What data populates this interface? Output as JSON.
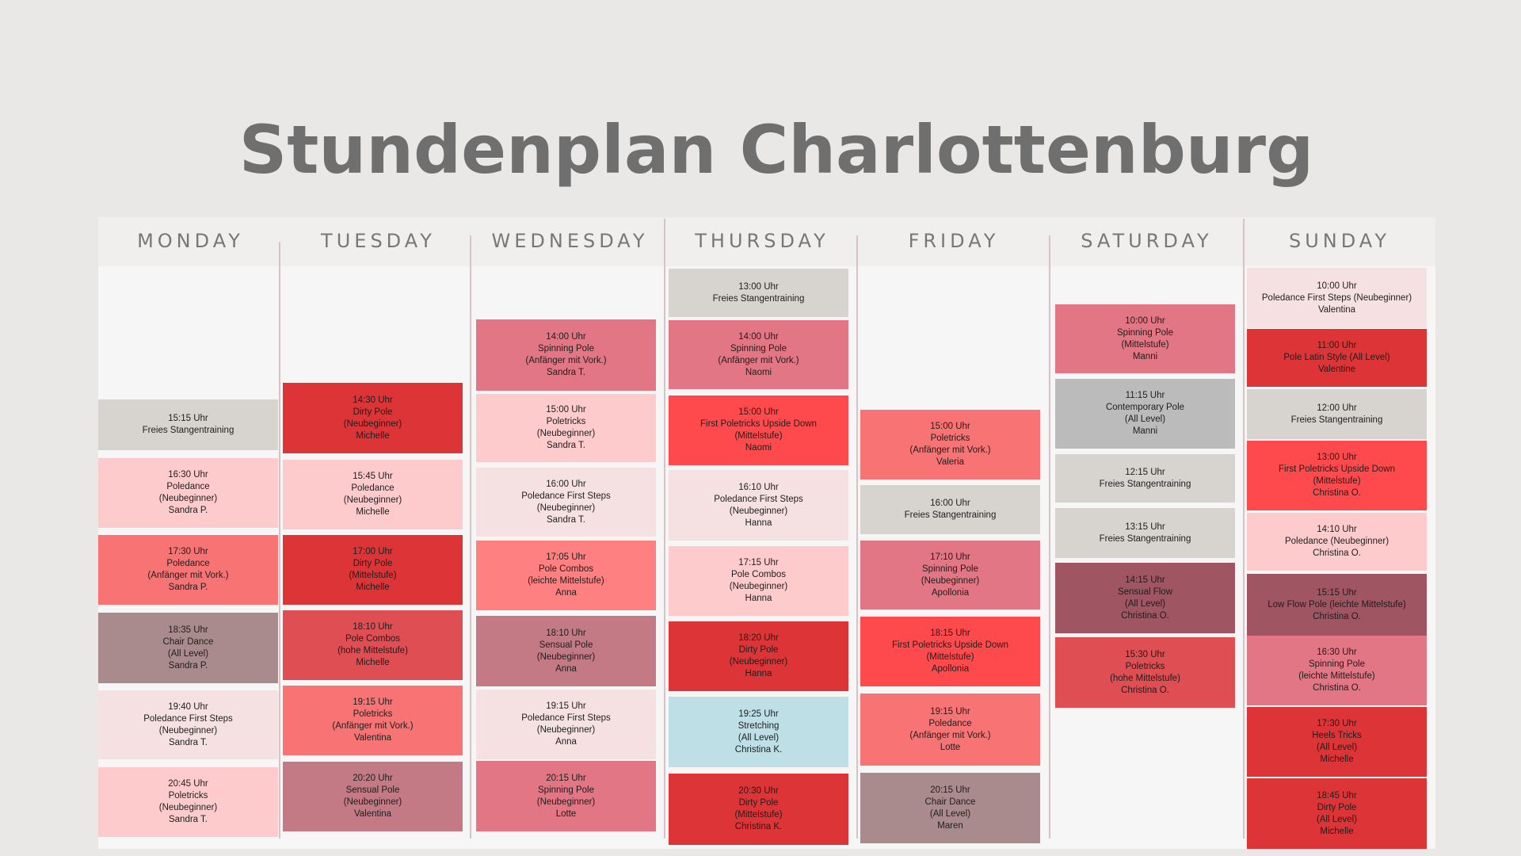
{
  "title": "Stundenplan Charlottenburg",
  "colors": {
    "grey": "#d7d3cf",
    "silver": "#bbbbbb",
    "light_pink": "#fecbcc",
    "pale_pink": "#f6e1e2",
    "salmon": "#f87374",
    "red": "#dd3537",
    "bright_red": "#fe4a4c",
    "rose": "#e27684",
    "dusty_rose": "#c37a85",
    "mauve": "#a98b8e",
    "wine": "#a05563",
    "brick": "#de4e53",
    "coral": "#ff8081",
    "light_blue": "#bedfe5"
  },
  "days": [
    {
      "name": "MONDAY",
      "classes": [
        {
          "time": "15:15 Uhr",
          "lines": [
            "Freies Stangentraining"
          ],
          "color": "grey"
        },
        {
          "time": "16:30 Uhr",
          "lines": [
            "Poledance",
            "(Neubeginner)",
            "Sandra P."
          ],
          "color": "light_pink"
        },
        {
          "time": "17:30 Uhr",
          "lines": [
            "Poledance",
            "(Anfänger mit Vork.)",
            "Sandra P."
          ],
          "color": "salmon"
        },
        {
          "time": "18:35 Uhr",
          "lines": [
            "Chair Dance",
            "(All Level)",
            "Sandra P."
          ],
          "color": "mauve"
        },
        {
          "time": "19:40 Uhr",
          "lines": [
            "Poledance First Steps",
            "(Neubeginner)",
            "Sandra T."
          ],
          "color": "pale_pink"
        },
        {
          "time": "20:45 Uhr",
          "lines": [
            "Poletricks",
            "(Neubeginner)",
            "Sandra T."
          ],
          "color": "light_pink"
        }
      ]
    },
    {
      "name": "TUESDAY",
      "classes": [
        {
          "time": "14:30 Uhr",
          "lines": [
            "Dirty Pole",
            "(Neubeginner)",
            "Michelle"
          ],
          "color": "red"
        },
        {
          "time": "15:45 Uhr",
          "lines": [
            "Poledance",
            "(Neubeginner)",
            "Michelle"
          ],
          "color": "light_pink"
        },
        {
          "time": "17:00 Uhr",
          "lines": [
            "Dirty Pole",
            "(Mittelstufe)",
            "Michelle"
          ],
          "color": "red"
        },
        {
          "time": "18:10 Uhr",
          "lines": [
            "Pole Combos",
            "(hohe Mittelstufe)",
            "Michelle"
          ],
          "color": "brick"
        },
        {
          "time": "19:15 Uhr",
          "lines": [
            "Poletricks",
            "(Anfänger mit Vork.)",
            "Valentina"
          ],
          "color": "salmon"
        },
        {
          "time": "20:20 Uhr",
          "lines": [
            "Sensual Pole",
            "(Neubeginner)",
            "Valentina"
          ],
          "color": "dusty_rose"
        }
      ]
    },
    {
      "name": "WEDNESDAY",
      "classes": [
        {
          "time": "14:00 Uhr",
          "lines": [
            "Spinning Pole",
            "(Anfänger mit Vork.)",
            "Sandra T."
          ],
          "color": "rose"
        },
        {
          "time": "15:00 Uhr",
          "lines": [
            "Poletricks",
            "(Neubeginner)",
            "Sandra T."
          ],
          "color": "light_pink"
        },
        {
          "time": "16:00 Uhr",
          "lines": [
            "Poledance First Steps",
            "(Neubeginner)",
            "Sandra T."
          ],
          "color": "pale_pink"
        },
        {
          "time": "17:05 Uhr",
          "lines": [
            "Pole Combos",
            "(leichte Mittelstufe)",
            "Anna"
          ],
          "color": "coral"
        },
        {
          "time": "18:10 Uhr",
          "lines": [
            "Sensual Pole",
            "(Neubeginner)",
            "Anna"
          ],
          "color": "dusty_rose"
        },
        {
          "time": "19:15 Uhr",
          "lines": [
            "Poledance First Steps",
            "(Neubeginner)",
            "Anna"
          ],
          "color": "pale_pink"
        },
        {
          "time": "20:15 Uhr",
          "lines": [
            "Spinning Pole",
            "(Neubeginner)",
            "Lotte"
          ],
          "color": "rose"
        }
      ]
    },
    {
      "name": "THURSDAY",
      "classes": [
        {
          "time": "13:00 Uhr",
          "lines": [
            "Freies Stangentraining"
          ],
          "color": "grey"
        },
        {
          "time": "14:00 Uhr",
          "lines": [
            "Spinning Pole",
            "(Anfänger mit Vork.)",
            "Naomi"
          ],
          "color": "rose"
        },
        {
          "time": "15:00 Uhr",
          "lines": [
            "First Poletricks Upside Down",
            "(Mittelstufe)",
            "Naomi"
          ],
          "color": "bright_red"
        },
        {
          "time": "16:10 Uhr",
          "lines": [
            "Poledance First Steps",
            "(Neubeginner)",
            "Hanna"
          ],
          "color": "pale_pink"
        },
        {
          "time": "17:15 Uhr",
          "lines": [
            "Pole Combos",
            "(Neubeginner)",
            "Hanna"
          ],
          "color": "light_pink"
        },
        {
          "time": "18:20 Uhr",
          "lines": [
            "Dirty Pole",
            "(Neubeginner)",
            "Hanna"
          ],
          "color": "red"
        },
        {
          "time": "19:25 Uhr",
          "lines": [
            "Stretching",
            "(All Level)",
            "Christina K."
          ],
          "color": "light_blue"
        },
        {
          "time": "20:30 Uhr",
          "lines": [
            "Dirty Pole",
            "(Mittelstufe)",
            "Christina K."
          ],
          "color": "red"
        }
      ]
    },
    {
      "name": "FRIDAY",
      "classes": [
        {
          "time": "15:00 Uhr",
          "lines": [
            "Poletricks",
            "(Anfänger mit Vork.)",
            "Valeria"
          ],
          "color": "salmon"
        },
        {
          "time": "16:00 Uhr",
          "lines": [
            "Freies Stangentraining"
          ],
          "color": "grey"
        },
        {
          "time": "17:10 Uhr",
          "lines": [
            "Spinning Pole",
            "(Neubeginner)",
            "Apollonia"
          ],
          "color": "rose"
        },
        {
          "time": "18:15 Uhr",
          "lines": [
            "First Poletricks Upside Down",
            "(Mittelstufe)",
            "Apollonia"
          ],
          "color": "bright_red"
        },
        {
          "time": "19:15 Uhr",
          "lines": [
            "Poledance",
            "(Anfänger mit Vork.)",
            "Lotte"
          ],
          "color": "salmon"
        },
        {
          "time": "20:15 Uhr",
          "lines": [
            "Chair Dance",
            "(All Level)",
            "Maren"
          ],
          "color": "mauve"
        }
      ]
    },
    {
      "name": "SATURDAY",
      "classes": [
        {
          "time": "10:00 Uhr",
          "lines": [
            "Spinning Pole",
            "(Mittelstufe)",
            "Manni"
          ],
          "color": "rose"
        },
        {
          "time": "11:15 Uhr",
          "lines": [
            "Contemporary Pole",
            "(All Level)",
            "Manni"
          ],
          "color": "silver"
        },
        {
          "time": "12:15 Uhr",
          "lines": [
            "Freies Stangentraining"
          ],
          "color": "grey"
        },
        {
          "time": "13:15 Uhr",
          "lines": [
            "Freies Stangentraining"
          ],
          "color": "grey"
        },
        {
          "time": "14:15 Uhr",
          "lines": [
            "Sensual Flow",
            "(All Level)",
            "Christina O."
          ],
          "color": "wine"
        },
        {
          "time": "15:30 Uhr",
          "lines": [
            "Poletricks",
            "(hohe Mittelstufe)",
            "Christina O."
          ],
          "color": "brick"
        }
      ]
    },
    {
      "name": "SUNDAY",
      "classes": [
        {
          "time": "10:00 Uhr",
          "lines": [
            "Poledance First Steps (Neubeginner)",
            "Valentina"
          ],
          "color": "pale_pink"
        },
        {
          "time": "11:00 Uhr",
          "lines": [
            "Pole Latin Style (All Level)",
            "Valentine"
          ],
          "color": "red"
        },
        {
          "time": "12:00 Uhr",
          "lines": [
            "Freies Stangentraining"
          ],
          "color": "grey"
        },
        {
          "time": "13:00 Uhr",
          "lines": [
            "First Poletricks Upside Down",
            "(Mittelstufe)",
            "Christina O."
          ],
          "color": "bright_red"
        },
        {
          "time": "14:10 Uhr",
          "lines": [
            "Poledance (Neubeginner)",
            "Christina O."
          ],
          "color": "light_pink"
        },
        {
          "time": "15:15 Uhr",
          "lines": [
            "Low Flow Pole (leichte Mittelstufe)",
            "Christina O."
          ],
          "color": "wine"
        },
        {
          "time": "16:30 Uhr",
          "lines": [
            "Spinning Pole",
            "(leichte Mittelstufe)",
            "Christina O."
          ],
          "color": "rose"
        },
        {
          "time": "17:30 Uhr",
          "lines": [
            "Heels Tricks",
            "(All Level)",
            "Michelle"
          ],
          "color": "red"
        },
        {
          "time": "18:45 Uhr",
          "lines": [
            "Dirty Pole",
            "(All Level)",
            "Michelle"
          ],
          "color": "red"
        }
      ]
    }
  ]
}
